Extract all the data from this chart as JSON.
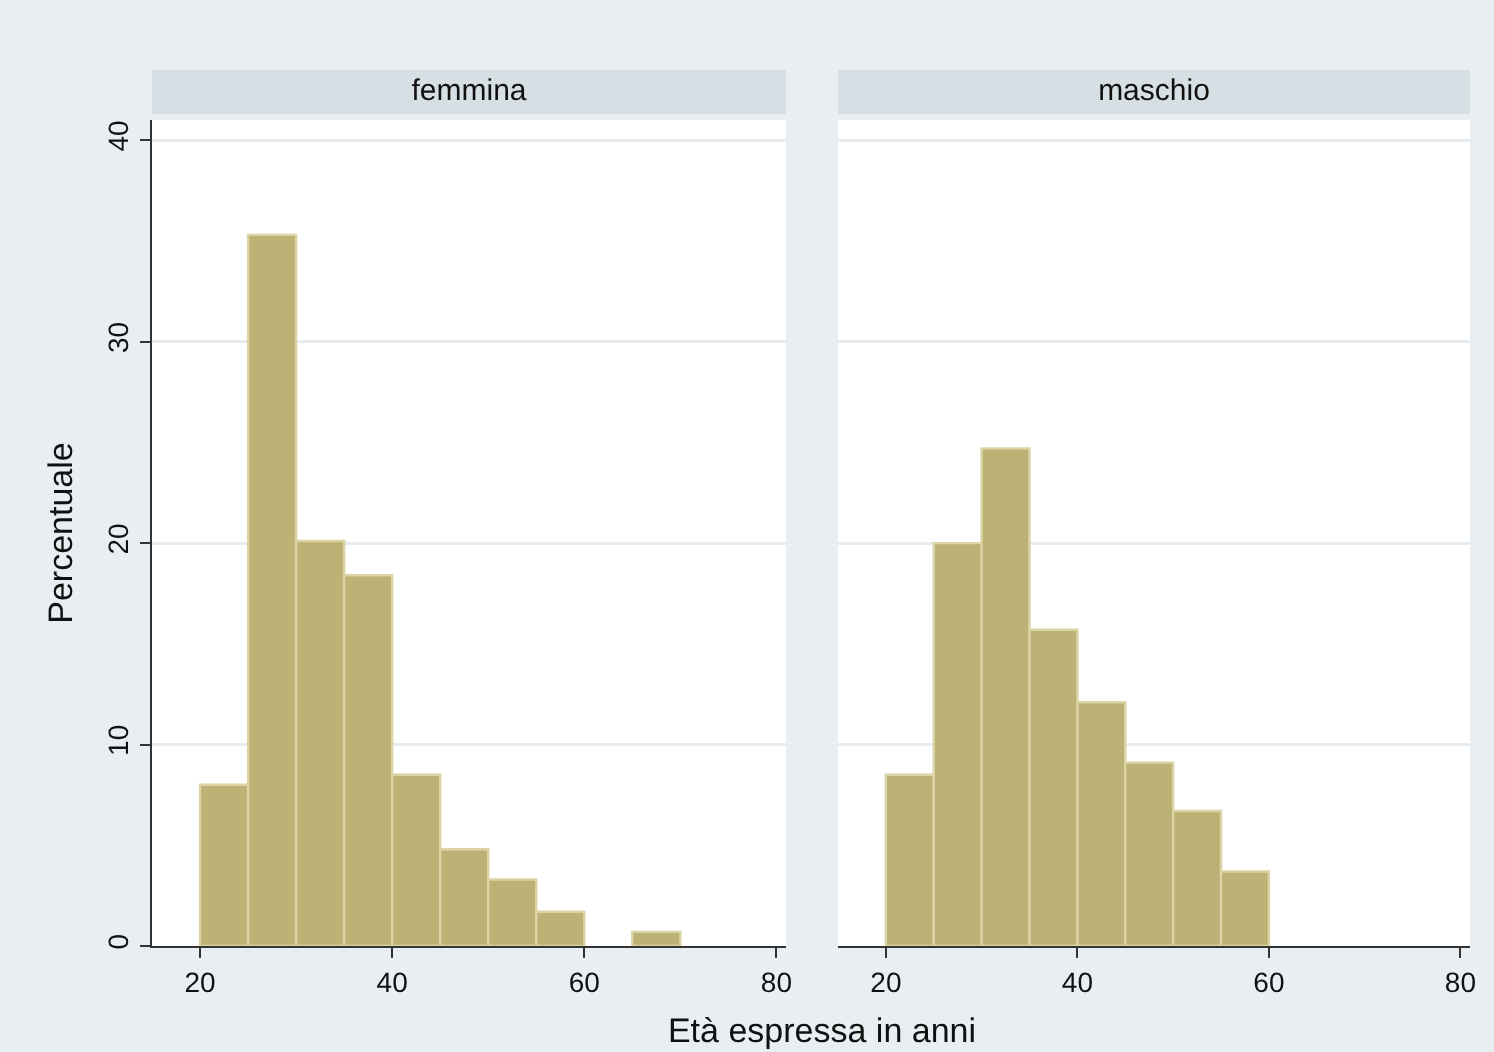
{
  "chart_data": [
    {
      "type": "histogram",
      "title": "femmina",
      "xlabel": "Età espressa in anni",
      "ylabel": "Percentuale",
      "bins": [
        20,
        25,
        30,
        35,
        40,
        45,
        50,
        55,
        60,
        65,
        70
      ],
      "values": [
        8.0,
        35.3,
        20.1,
        18.4,
        8.5,
        4.8,
        3.3,
        1.7,
        0,
        0.7
      ],
      "color": "#bdb276",
      "xlim": [
        15,
        81
      ],
      "xticks": [
        20,
        40,
        60,
        80
      ],
      "ylim": [
        0,
        41
      ],
      "yticks": [
        0,
        10,
        20,
        30,
        40
      ],
      "grid": "y"
    },
    {
      "type": "histogram",
      "title": "maschio",
      "bins": [
        20,
        25,
        30,
        35,
        40,
        45,
        50,
        55,
        60
      ],
      "values": [
        8.5,
        20.0,
        24.7,
        15.7,
        12.1,
        9.1,
        6.7,
        3.7
      ],
      "color": "#bdb276",
      "xlim": [
        15,
        81
      ],
      "xticks": [
        20,
        40,
        60,
        80
      ],
      "ylim": [
        0,
        41
      ],
      "yticks": [
        0,
        10,
        20,
        30,
        40
      ],
      "grid": "y",
      "tick_labels": "x"
    }
  ]
}
